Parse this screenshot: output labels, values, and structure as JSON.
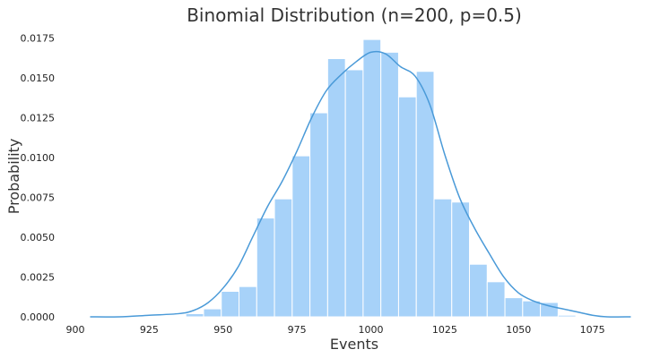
{
  "chart_data": {
    "type": "bar",
    "title": "Binomial Distribution (n=200, p=0.5)",
    "xlabel": "Events",
    "ylabel": "Probability",
    "xlim": [
      900,
      1090
    ],
    "ylim": [
      0,
      0.0178
    ],
    "x_ticks": [
      900,
      925,
      950,
      975,
      1000,
      1025,
      1050,
      1075
    ],
    "x_tick_labels": [
      "900",
      "925",
      "950",
      "975",
      "1000",
      "1025",
      "1050",
      "1075"
    ],
    "y_ticks": [
      0,
      0.0025,
      0.005,
      0.0075,
      0.01,
      0.0125,
      0.015,
      0.0175
    ],
    "y_tick_labels": [
      "0.0000",
      "0.0025",
      "0.0050",
      "0.0075",
      "0.0100",
      "0.0125",
      "0.0150",
      "0.0175"
    ],
    "grid": false,
    "colors": {
      "bar": "#a7d2f9",
      "kde": "#4a9ad8"
    },
    "histogram": {
      "bin_edges": [
        937.4,
        943.4,
        949.4,
        955.4,
        961.4,
        967.4,
        973.4,
        979.4,
        985.4,
        991.4,
        997.4,
        1003.4,
        1009.4,
        1015.4,
        1021.4,
        1027.4,
        1033.4,
        1039.4,
        1045.4,
        1051.4,
        1057.4,
        1063.4,
        1069.4
      ],
      "values": [
        0.0002,
        0.0005,
        0.0016,
        0.0019,
        0.0062,
        0.0074,
        0.0101,
        0.0128,
        0.0162,
        0.0155,
        0.0174,
        0.0166,
        0.0138,
        0.0154,
        0.0074,
        0.0072,
        0.0033,
        0.0022,
        0.0012,
        0.001,
        0.0009,
        0.0001
      ]
    },
    "kde": {
      "x": [
        905,
        915,
        925,
        935,
        940,
        945,
        950,
        955,
        960,
        965,
        970,
        975,
        980,
        985,
        990,
        995,
        1000,
        1005,
        1010,
        1015,
        1020,
        1025,
        1030,
        1035,
        1040,
        1045,
        1050,
        1055,
        1060,
        1065,
        1070,
        1075,
        1080,
        1088
      ],
      "y": [
        0.0,
        0.0,
        0.0001,
        0.0002,
        0.0004,
        0.0009,
        0.0018,
        0.0031,
        0.005,
        0.0069,
        0.0085,
        0.0104,
        0.0125,
        0.0142,
        0.0152,
        0.016,
        0.0166,
        0.0165,
        0.0157,
        0.0151,
        0.0133,
        0.0102,
        0.0075,
        0.0056,
        0.004,
        0.0025,
        0.0015,
        0.001,
        0.0007,
        0.0005,
        0.0003,
        0.0001,
        0.0,
        0.0
      ]
    }
  }
}
